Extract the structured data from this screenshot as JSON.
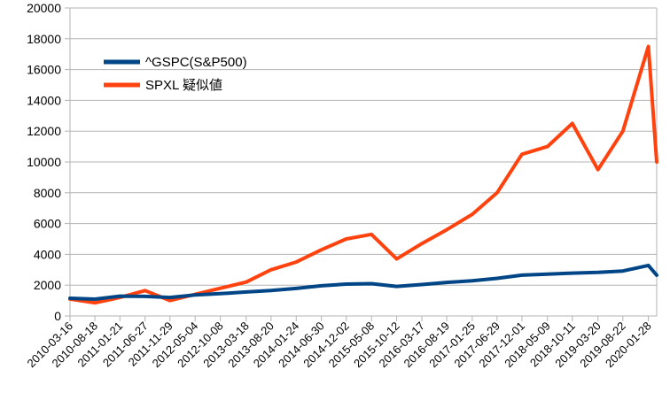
{
  "chart_data": {
    "type": "line",
    "title": "",
    "xlabel": "",
    "ylabel": "",
    "ylim": [
      0,
      20000
    ],
    "yticks": [
      0,
      2000,
      4000,
      6000,
      8000,
      10000,
      12000,
      14000,
      16000,
      18000,
      20000
    ],
    "grid": "horizontal",
    "legend_position": "top-left",
    "x_tick_labels": [
      "2010-03-16",
      "2010-08-18",
      "2011-01-21",
      "2011-06-27",
      "2011-11-29",
      "2012-05-04",
      "2012-10-08",
      "2013-03-18",
      "2013-08-20",
      "2014-01-24",
      "2014-06-30",
      "2014-12-02",
      "2015-05-08",
      "2015-10-12",
      "2016-03-17",
      "2016-08-19",
      "2017-01-25",
      "2017-06-29",
      "2017-12-01",
      "2018-05-09",
      "2018-10-11",
      "2019-03-20",
      "2019-08-22",
      "2020-01-28"
    ],
    "x": [
      "2010-03-16",
      "2010-08-18",
      "2011-01-21",
      "2011-06-27",
      "2011-11-29",
      "2012-05-04",
      "2012-10-08",
      "2013-03-18",
      "2013-08-20",
      "2014-01-24",
      "2014-06-30",
      "2014-12-02",
      "2015-05-08",
      "2015-10-12",
      "2016-03-17",
      "2016-08-19",
      "2017-01-25",
      "2017-06-29",
      "2017-12-01",
      "2018-05-09",
      "2018-10-11",
      "2019-03-20",
      "2019-08-22",
      "2020-01-28",
      "2020-03-20"
    ],
    "series": [
      {
        "name": "^GSPC(S&P500)",
        "color": "#004586",
        "values": [
          1150,
          1090,
          1290,
          1270,
          1200,
          1370,
          1450,
          1560,
          1650,
          1790,
          1960,
          2070,
          2100,
          1920,
          2040,
          2180,
          2290,
          2440,
          2650,
          2720,
          2780,
          2830,
          2920,
          3280,
          2650
        ]
      },
      {
        "name": "SPXL 疑似値",
        "color": "#ff420e",
        "values": [
          1100,
          850,
          1200,
          1650,
          1000,
          1400,
          1800,
          2200,
          3000,
          3500,
          4300,
          5000,
          5300,
          3700,
          4700,
          5600,
          6600,
          8000,
          10500,
          11000,
          12500,
          9500,
          12000,
          17500,
          10000
        ]
      }
    ]
  }
}
